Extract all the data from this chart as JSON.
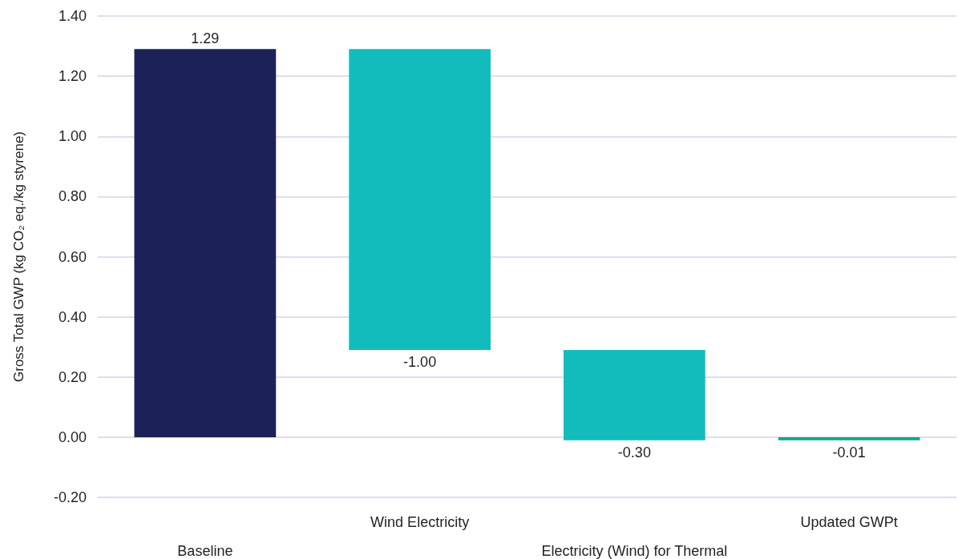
{
  "chart_data": {
    "type": "bar",
    "ylabel": "Gross Total GWP (kg CO₂ eq./kg styrene)",
    "categories": [
      "Baseline",
      "Wind Electricity",
      "Electricity (Wind) for Thermal",
      "Updated GWPt"
    ],
    "values": [
      1.29,
      -1.0,
      -0.3,
      -0.01
    ],
    "base": [
      0,
      1.29,
      0.29,
      0
    ],
    "colors": [
      "#1c2257",
      "#13bcbc",
      "#13bcbc",
      "#0aa88c"
    ],
    "value_labels": [
      "1.29",
      "-1.00",
      "-0.30",
      "-0.01"
    ],
    "ylim": [
      -0.2,
      1.4
    ],
    "yticks": [
      {
        "value": -0.2,
        "label": "-0.20"
      },
      {
        "value": 0,
        "label": "0.00"
      },
      {
        "value": 0.2,
        "label": "0.20"
      },
      {
        "value": 0.4,
        "label": "0.40"
      },
      {
        "value": 0.6,
        "label": "0.60"
      },
      {
        "value": 0.8,
        "label": "0.80"
      },
      {
        "value": 1.0,
        "label": "1.00"
      },
      {
        "value": 1.2,
        "label": "1.20"
      },
      {
        "value": 1.4,
        "label": "1.40"
      }
    ],
    "grid": "y"
  }
}
